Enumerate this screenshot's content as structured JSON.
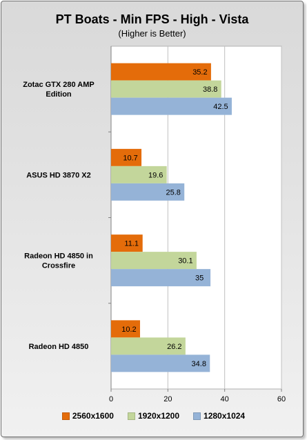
{
  "chart_data": {
    "type": "bar",
    "orientation": "horizontal",
    "title": "PT Boats - Min FPS - High - Vista",
    "subtitle": "(Higher is Better)",
    "categories": [
      "Zotac GTX 280 AMP Edition",
      "ASUS HD 3870 X2",
      "Radeon HD 4850 in Crossfire",
      "Radeon HD 4850"
    ],
    "series": [
      {
        "name": "2560x1600",
        "color": "#e46c0a",
        "values": [
          35.2,
          10.7,
          11.1,
          10.2
        ]
      },
      {
        "name": "1920x1200",
        "color": "#c3d69b",
        "values": [
          38.8,
          19.6,
          30.1,
          26.2
        ]
      },
      {
        "name": "1280x1024",
        "color": "#95b3d7",
        "values": [
          42.5,
          25.8,
          35,
          34.8
        ]
      }
    ],
    "x_ticks": [
      "0",
      "20",
      "40",
      "60"
    ],
    "xlim": [
      0,
      60
    ],
    "grid": "vertical",
    "legend_position": "bottom",
    "plot_background": "#ffffff"
  }
}
